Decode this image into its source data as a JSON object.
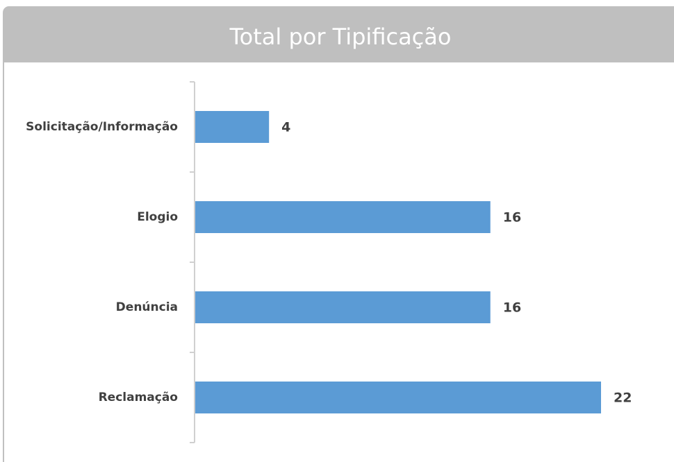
{
  "chart_data": {
    "type": "bar",
    "orientation": "horizontal",
    "title": "Total por Tipificação",
    "categories": [
      "Solicitação/Informação",
      "Elogio",
      "Denúncia",
      "Reclamação"
    ],
    "values": [
      4,
      16,
      16,
      22
    ],
    "color": "#5b9bd5"
  }
}
